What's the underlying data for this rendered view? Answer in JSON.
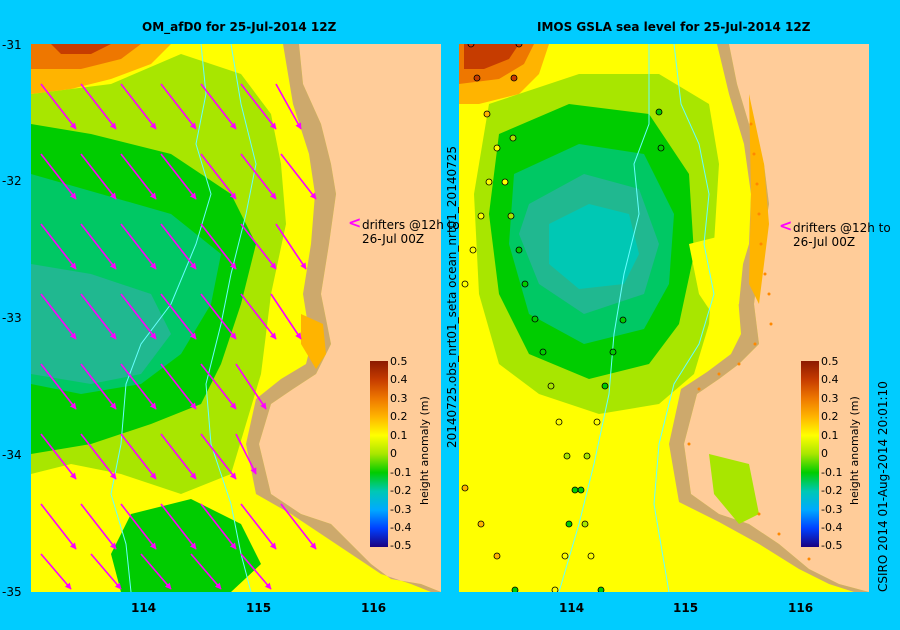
{
  "left_panel": {
    "title": "OM_afD0 for 25-Jul-2014 12Z",
    "annotation": [
      "drifters @12h to",
      "26-Jul 00Z"
    ]
  },
  "right_panel": {
    "title": "IMOS GSLA sea level  for 25-Jul-2014 12Z",
    "annotation": [
      "drifters @12h to",
      "26-Jul 00Z"
    ],
    "side_text": "20140725.obs_nrt01_seta    ocean_nrt01_20140725"
  },
  "y_ticks": [
    "-31",
    "-32",
    "-33",
    "-34",
    "-35"
  ],
  "x_ticks": [
    "114",
    "115",
    "116"
  ],
  "colorbar": {
    "label": "height anomaly (m)",
    "ticks": [
      "0.5",
      "0.4",
      "0.3",
      "0.2",
      "0.1",
      "0",
      "-0.1",
      "-0.2",
      "-0.3",
      "-0.4",
      "-0.5"
    ]
  },
  "credit": "CSIRO 2014   01-Aug-2014 20:01:10",
  "colors": {
    "background": "#00ccff",
    "land": "#ffcc99",
    "shelf": "#c8a078",
    "arrow": "#ff00ff",
    "coast_line": "#66ffff"
  }
}
